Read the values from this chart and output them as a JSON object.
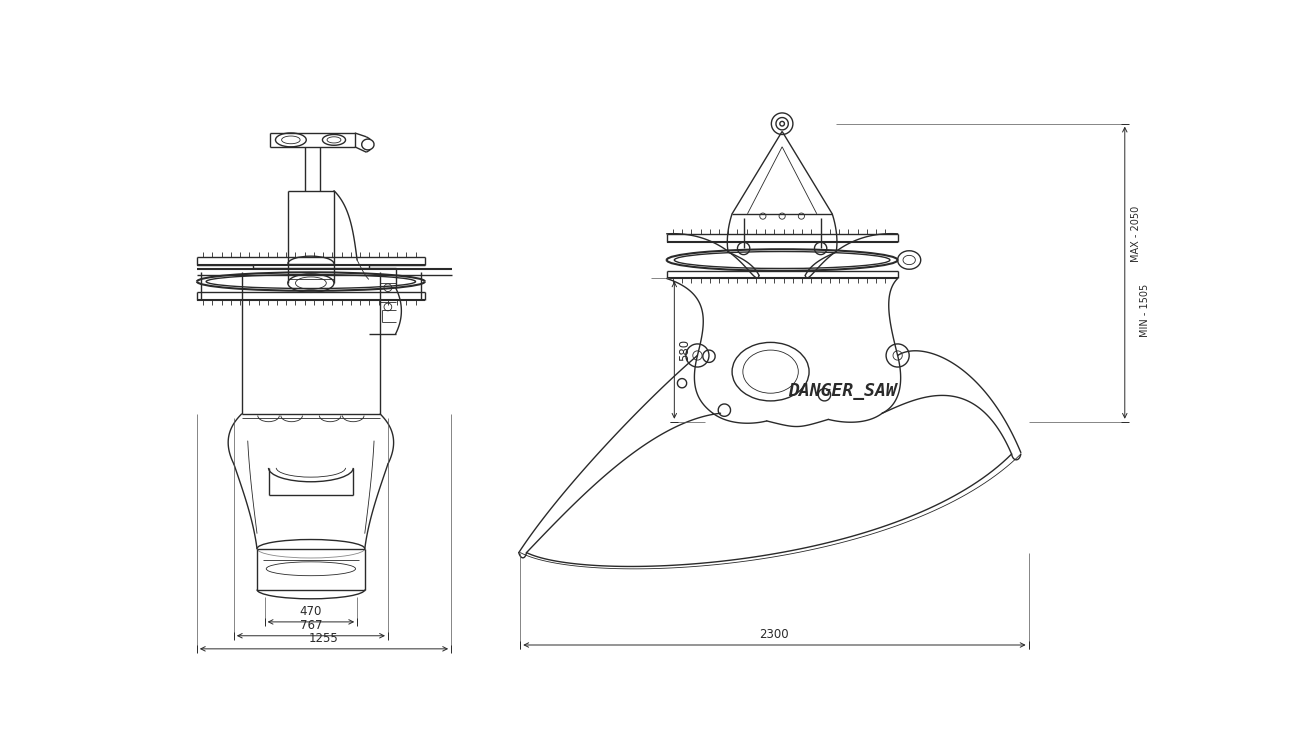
{
  "bg_color": "#ffffff",
  "line_color": "#2a2a2a",
  "dim_color": "#2a2a2a",
  "dim_fontsize": 8.5,
  "brand_text": "DANGER_SAW",
  "brand_fontsize": 13,
  "lw_main": 1.0,
  "lw_thick": 1.5,
  "lw_thin": 0.6,
  "lw_dim": 0.7
}
